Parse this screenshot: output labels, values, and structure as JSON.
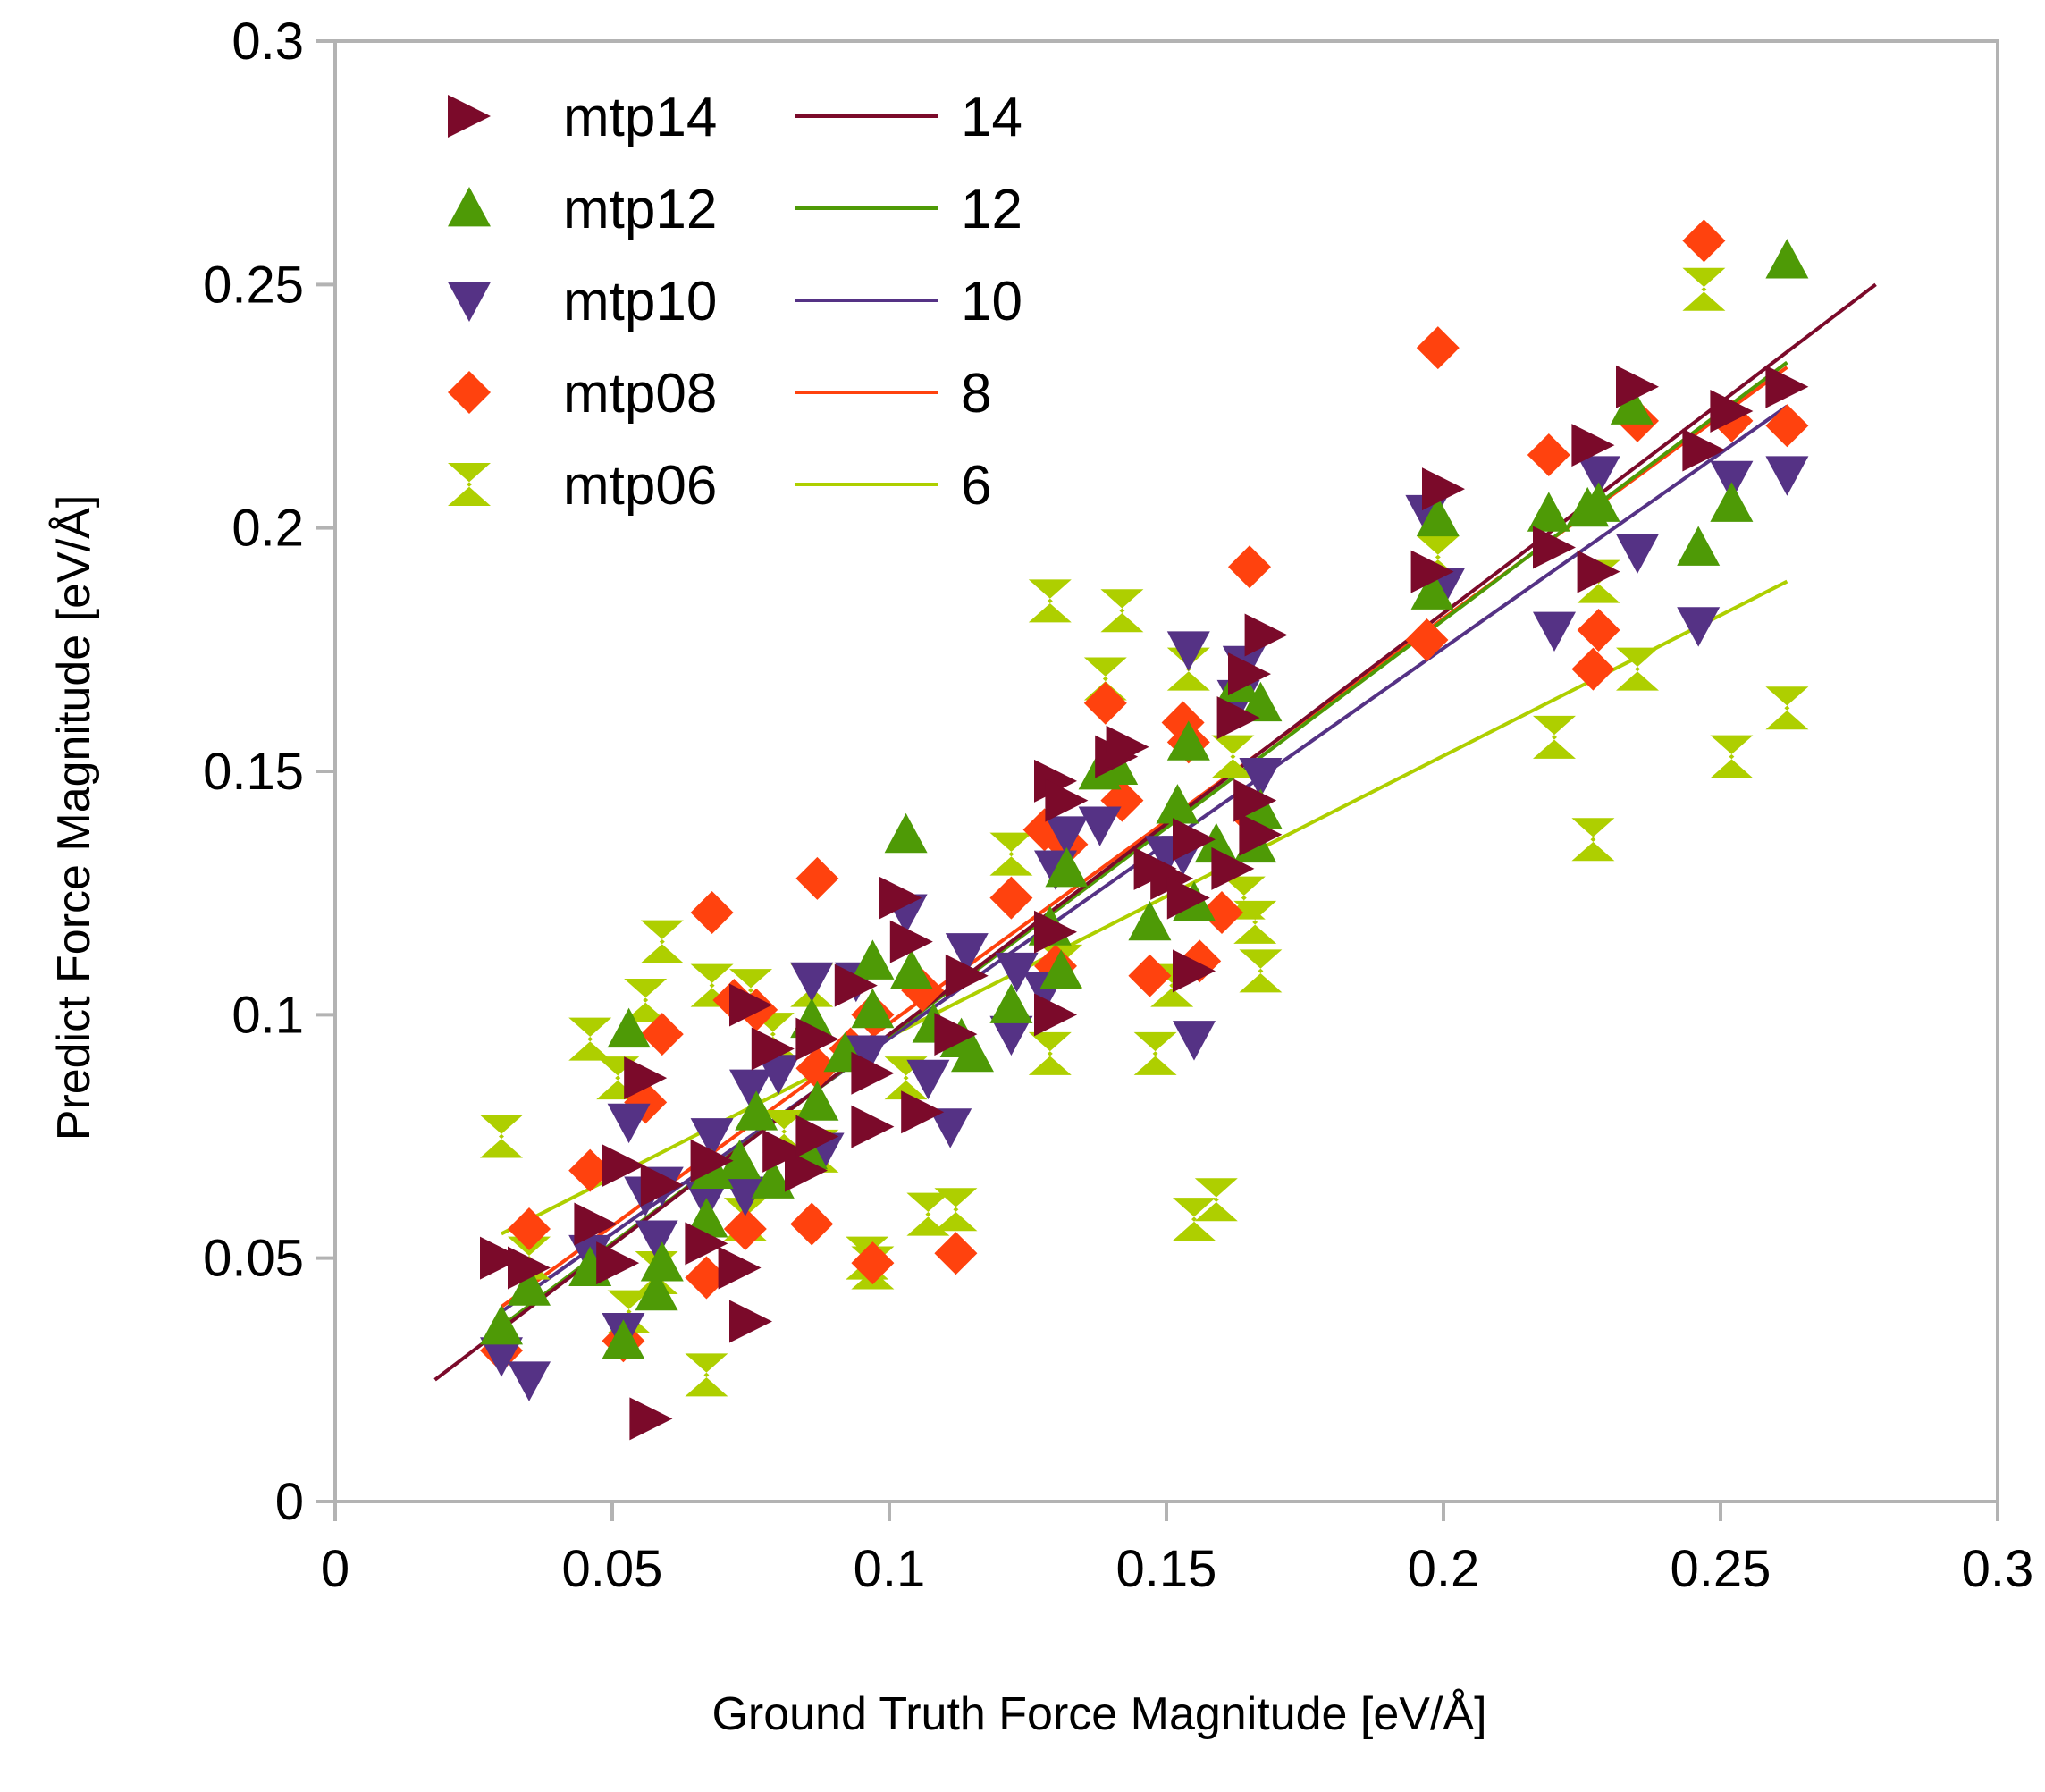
{
  "chart_data": {
    "type": "scatter",
    "xlabel": "Ground Truth Force Magnitude [eV/Å]",
    "ylabel": "Predict Force Magnitude [eV/Å]",
    "xlim": [
      0,
      0.3
    ],
    "ylim": [
      0,
      0.3
    ],
    "x_ticks": [
      "0",
      "0.05",
      "0.1",
      "0.15",
      "0.2",
      "0.25",
      "0.3"
    ],
    "y_ticks": [
      "0",
      "0.05",
      "0.1",
      "0.15",
      "0.2",
      "0.25",
      "0.3"
    ],
    "grid": false,
    "legend_position": "top-left",
    "series": [
      {
        "name": "mtp14",
        "marker": "triangle-right",
        "color": "#7b0a2a",
        "points": [
          [
            0.03,
            0.05
          ],
          [
            0.035,
            0.048
          ],
          [
            0.047,
            0.057
          ],
          [
            0.051,
            0.049
          ],
          [
            0.052,
            0.069
          ],
          [
            0.056,
            0.087
          ],
          [
            0.057,
            0.017
          ],
          [
            0.059,
            0.065
          ],
          [
            0.067,
            0.053
          ],
          [
            0.068,
            0.07
          ],
          [
            0.073,
            0.048
          ],
          [
            0.075,
            0.037
          ],
          [
            0.075,
            0.102
          ],
          [
            0.079,
            0.093
          ],
          [
            0.081,
            0.072
          ],
          [
            0.085,
            0.068
          ],
          [
            0.087,
            0.095
          ],
          [
            0.087,
            0.075
          ],
          [
            0.094,
            0.106
          ],
          [
            0.097,
            0.077
          ],
          [
            0.097,
            0.088
          ],
          [
            0.102,
            0.124
          ],
          [
            0.104,
            0.115
          ],
          [
            0.106,
            0.08
          ],
          [
            0.112,
            0.096
          ],
          [
            0.114,
            0.108
          ],
          [
            0.13,
            0.148
          ],
          [
            0.13,
            0.1
          ],
          [
            0.132,
            0.144
          ],
          [
            0.13,
            0.117
          ],
          [
            0.141,
            0.153
          ],
          [
            0.143,
            0.155
          ],
          [
            0.148,
            0.13
          ],
          [
            0.151,
            0.128
          ],
          [
            0.154,
            0.124
          ],
          [
            0.155,
            0.109
          ],
          [
            0.155,
            0.136
          ],
          [
            0.162,
            0.13
          ],
          [
            0.163,
            0.161
          ],
          [
            0.165,
            0.17
          ],
          [
            0.166,
            0.144
          ],
          [
            0.168,
            0.178
          ],
          [
            0.167,
            0.137
          ],
          [
            0.198,
            0.191
          ],
          [
            0.2,
            0.208
          ],
          [
            0.22,
            0.196
          ],
          [
            0.227,
            0.217
          ],
          [
            0.228,
            0.191
          ],
          [
            0.235,
            0.229
          ],
          [
            0.247,
            0.216
          ],
          [
            0.252,
            0.224
          ],
          [
            0.262,
            0.229
          ]
        ],
        "fit": {
          "name": "14",
          "x": [
            0.018,
            0.278
          ],
          "y": [
            0.025,
            0.25
          ]
        }
      },
      {
        "name": "mtp12",
        "marker": "triangle-up",
        "color": "#4e9a06",
        "points": [
          [
            0.03,
            0.036
          ],
          [
            0.035,
            0.044
          ],
          [
            0.046,
            0.048
          ],
          [
            0.052,
            0.033
          ],
          [
            0.053,
            0.097
          ],
          [
            0.058,
            0.043
          ],
          [
            0.059,
            0.049
          ],
          [
            0.067,
            0.058
          ],
          [
            0.068,
            0.068
          ],
          [
            0.073,
            0.07
          ],
          [
            0.076,
            0.08
          ],
          [
            0.079,
            0.066
          ],
          [
            0.085,
            0.072
          ],
          [
            0.086,
            0.099
          ],
          [
            0.087,
            0.082
          ],
          [
            0.092,
            0.092
          ],
          [
            0.097,
            0.101
          ],
          [
            0.097,
            0.111
          ],
          [
            0.103,
            0.137
          ],
          [
            0.104,
            0.109
          ],
          [
            0.108,
            0.098
          ],
          [
            0.113,
            0.095
          ],
          [
            0.115,
            0.092
          ],
          [
            0.122,
            0.102
          ],
          [
            0.129,
            0.118
          ],
          [
            0.131,
            0.109
          ],
          [
            0.132,
            0.13
          ],
          [
            0.138,
            0.15
          ],
          [
            0.141,
            0.151
          ],
          [
            0.147,
            0.119
          ],
          [
            0.152,
            0.143
          ],
          [
            0.154,
            0.156
          ],
          [
            0.155,
            0.123
          ],
          [
            0.159,
            0.135
          ],
          [
            0.163,
            0.168
          ],
          [
            0.166,
            0.135
          ],
          [
            0.167,
            0.142
          ],
          [
            0.167,
            0.164
          ],
          [
            0.198,
            0.187
          ],
          [
            0.199,
            0.202
          ],
          [
            0.219,
            0.203
          ],
          [
            0.226,
            0.204
          ],
          [
            0.228,
            0.205
          ],
          [
            0.234,
            0.225
          ],
          [
            0.246,
            0.196
          ],
          [
            0.252,
            0.205
          ],
          [
            0.262,
            0.255
          ]
        ],
        "fit": {
          "name": "12",
          "x": [
            0.03,
            0.262
          ],
          "y": [
            0.036,
            0.234
          ]
        }
      },
      {
        "name": "mtp10",
        "marker": "triangle-down",
        "color": "#553285",
        "points": [
          [
            0.03,
            0.03
          ],
          [
            0.035,
            0.025
          ],
          [
            0.046,
            0.051
          ],
          [
            0.052,
            0.035
          ],
          [
            0.053,
            0.078
          ],
          [
            0.056,
            0.063
          ],
          [
            0.058,
            0.054
          ],
          [
            0.059,
            0.065
          ],
          [
            0.067,
            0.062
          ],
          [
            0.068,
            0.075
          ],
          [
            0.074,
            0.063
          ],
          [
            0.075,
            0.085
          ],
          [
            0.08,
            0.088
          ],
          [
            0.086,
            0.107
          ],
          [
            0.088,
            0.072
          ],
          [
            0.094,
            0.107
          ],
          [
            0.096,
            0.092
          ],
          [
            0.103,
            0.121
          ],
          [
            0.107,
            0.087
          ],
          [
            0.111,
            0.077
          ],
          [
            0.114,
            0.113
          ],
          [
            0.122,
            0.096
          ],
          [
            0.123,
            0.109
          ],
          [
            0.128,
            0.105
          ],
          [
            0.13,
            0.13
          ],
          [
            0.132,
            0.137
          ],
          [
            0.138,
            0.139
          ],
          [
            0.15,
            0.133
          ],
          [
            0.153,
            0.133
          ],
          [
            0.154,
            0.175
          ],
          [
            0.155,
            0.095
          ],
          [
            0.163,
            0.165
          ],
          [
            0.164,
            0.172
          ],
          [
            0.167,
            0.149
          ],
          [
            0.197,
            0.203
          ],
          [
            0.2,
            0.188
          ],
          [
            0.22,
            0.179
          ],
          [
            0.228,
            0.211
          ],
          [
            0.235,
            0.195
          ],
          [
            0.246,
            0.18
          ],
          [
            0.252,
            0.21
          ],
          [
            0.262,
            0.211
          ]
        ],
        "fit": {
          "name": "10",
          "x": [
            0.03,
            0.262
          ],
          "y": [
            0.039,
            0.225
          ]
        }
      },
      {
        "name": "mtp08",
        "marker": "diamond",
        "color": "#ff420e",
        "points": [
          [
            0.03,
            0.031
          ],
          [
            0.035,
            0.056
          ],
          [
            0.046,
            0.068
          ],
          [
            0.052,
            0.033
          ],
          [
            0.056,
            0.082
          ],
          [
            0.059,
            0.096
          ],
          [
            0.067,
            0.046
          ],
          [
            0.068,
            0.121
          ],
          [
            0.072,
            0.103
          ],
          [
            0.074,
            0.056
          ],
          [
            0.076,
            0.101
          ],
          [
            0.086,
            0.057
          ],
          [
            0.087,
            0.128
          ],
          [
            0.087,
            0.089
          ],
          [
            0.093,
            0.093
          ],
          [
            0.097,
            0.049
          ],
          [
            0.097,
            0.1
          ],
          [
            0.106,
            0.105
          ],
          [
            0.112,
            0.051
          ],
          [
            0.122,
            0.124
          ],
          [
            0.128,
            0.138
          ],
          [
            0.13,
            0.11
          ],
          [
            0.132,
            0.135
          ],
          [
            0.139,
            0.164
          ],
          [
            0.142,
            0.144
          ],
          [
            0.147,
            0.108
          ],
          [
            0.153,
            0.16
          ],
          [
            0.154,
            0.156
          ],
          [
            0.156,
            0.111
          ],
          [
            0.16,
            0.121
          ],
          [
            0.165,
            0.192
          ],
          [
            0.166,
            0.14
          ],
          [
            0.197,
            0.177
          ],
          [
            0.199,
            0.237
          ],
          [
            0.219,
            0.215
          ],
          [
            0.227,
            0.171
          ],
          [
            0.228,
            0.179
          ],
          [
            0.235,
            0.222
          ],
          [
            0.247,
            0.259
          ],
          [
            0.252,
            0.222
          ],
          [
            0.262,
            0.221
          ]
        ],
        "fit": {
          "name": "8",
          "x": [
            0.03,
            0.262
          ],
          "y": [
            0.04,
            0.233
          ]
        }
      },
      {
        "name": "mtp06",
        "marker": "hourglass",
        "color": "#aecf00",
        "points": [
          [
            0.03,
            0.075
          ],
          [
            0.035,
            0.05
          ],
          [
            0.046,
            0.095
          ],
          [
            0.051,
            0.087
          ],
          [
            0.053,
            0.039
          ],
          [
            0.056,
            0.103
          ],
          [
            0.058,
            0.047
          ],
          [
            0.059,
            0.115
          ],
          [
            0.067,
            0.026
          ],
          [
            0.068,
            0.106
          ],
          [
            0.074,
            0.058
          ],
          [
            0.075,
            0.105
          ],
          [
            0.079,
            0.096
          ],
          [
            0.081,
            0.076
          ],
          [
            0.086,
            0.106
          ],
          [
            0.087,
            0.072
          ],
          [
            0.096,
            0.05
          ],
          [
            0.097,
            0.048
          ],
          [
            0.103,
            0.087
          ],
          [
            0.107,
            0.059
          ],
          [
            0.112,
            0.06
          ],
          [
            0.122,
            0.133
          ],
          [
            0.129,
            0.185
          ],
          [
            0.129,
            0.092
          ],
          [
            0.131,
            0.11
          ],
          [
            0.139,
            0.169
          ],
          [
            0.142,
            0.183
          ],
          [
            0.148,
            0.092
          ],
          [
            0.151,
            0.106
          ],
          [
            0.154,
            0.171
          ],
          [
            0.155,
            0.058
          ],
          [
            0.159,
            0.062
          ],
          [
            0.162,
            0.153
          ],
          [
            0.164,
            0.124
          ],
          [
            0.166,
            0.119
          ],
          [
            0.167,
            0.109
          ],
          [
            0.199,
            0.194
          ],
          [
            0.22,
            0.157
          ],
          [
            0.227,
            0.136
          ],
          [
            0.228,
            0.189
          ],
          [
            0.235,
            0.171
          ],
          [
            0.247,
            0.249
          ],
          [
            0.252,
            0.153
          ],
          [
            0.262,
            0.163
          ]
        ],
        "fit": {
          "name": "6",
          "x": [
            0.03,
            0.262
          ],
          "y": [
            0.055,
            0.189
          ]
        }
      }
    ]
  }
}
